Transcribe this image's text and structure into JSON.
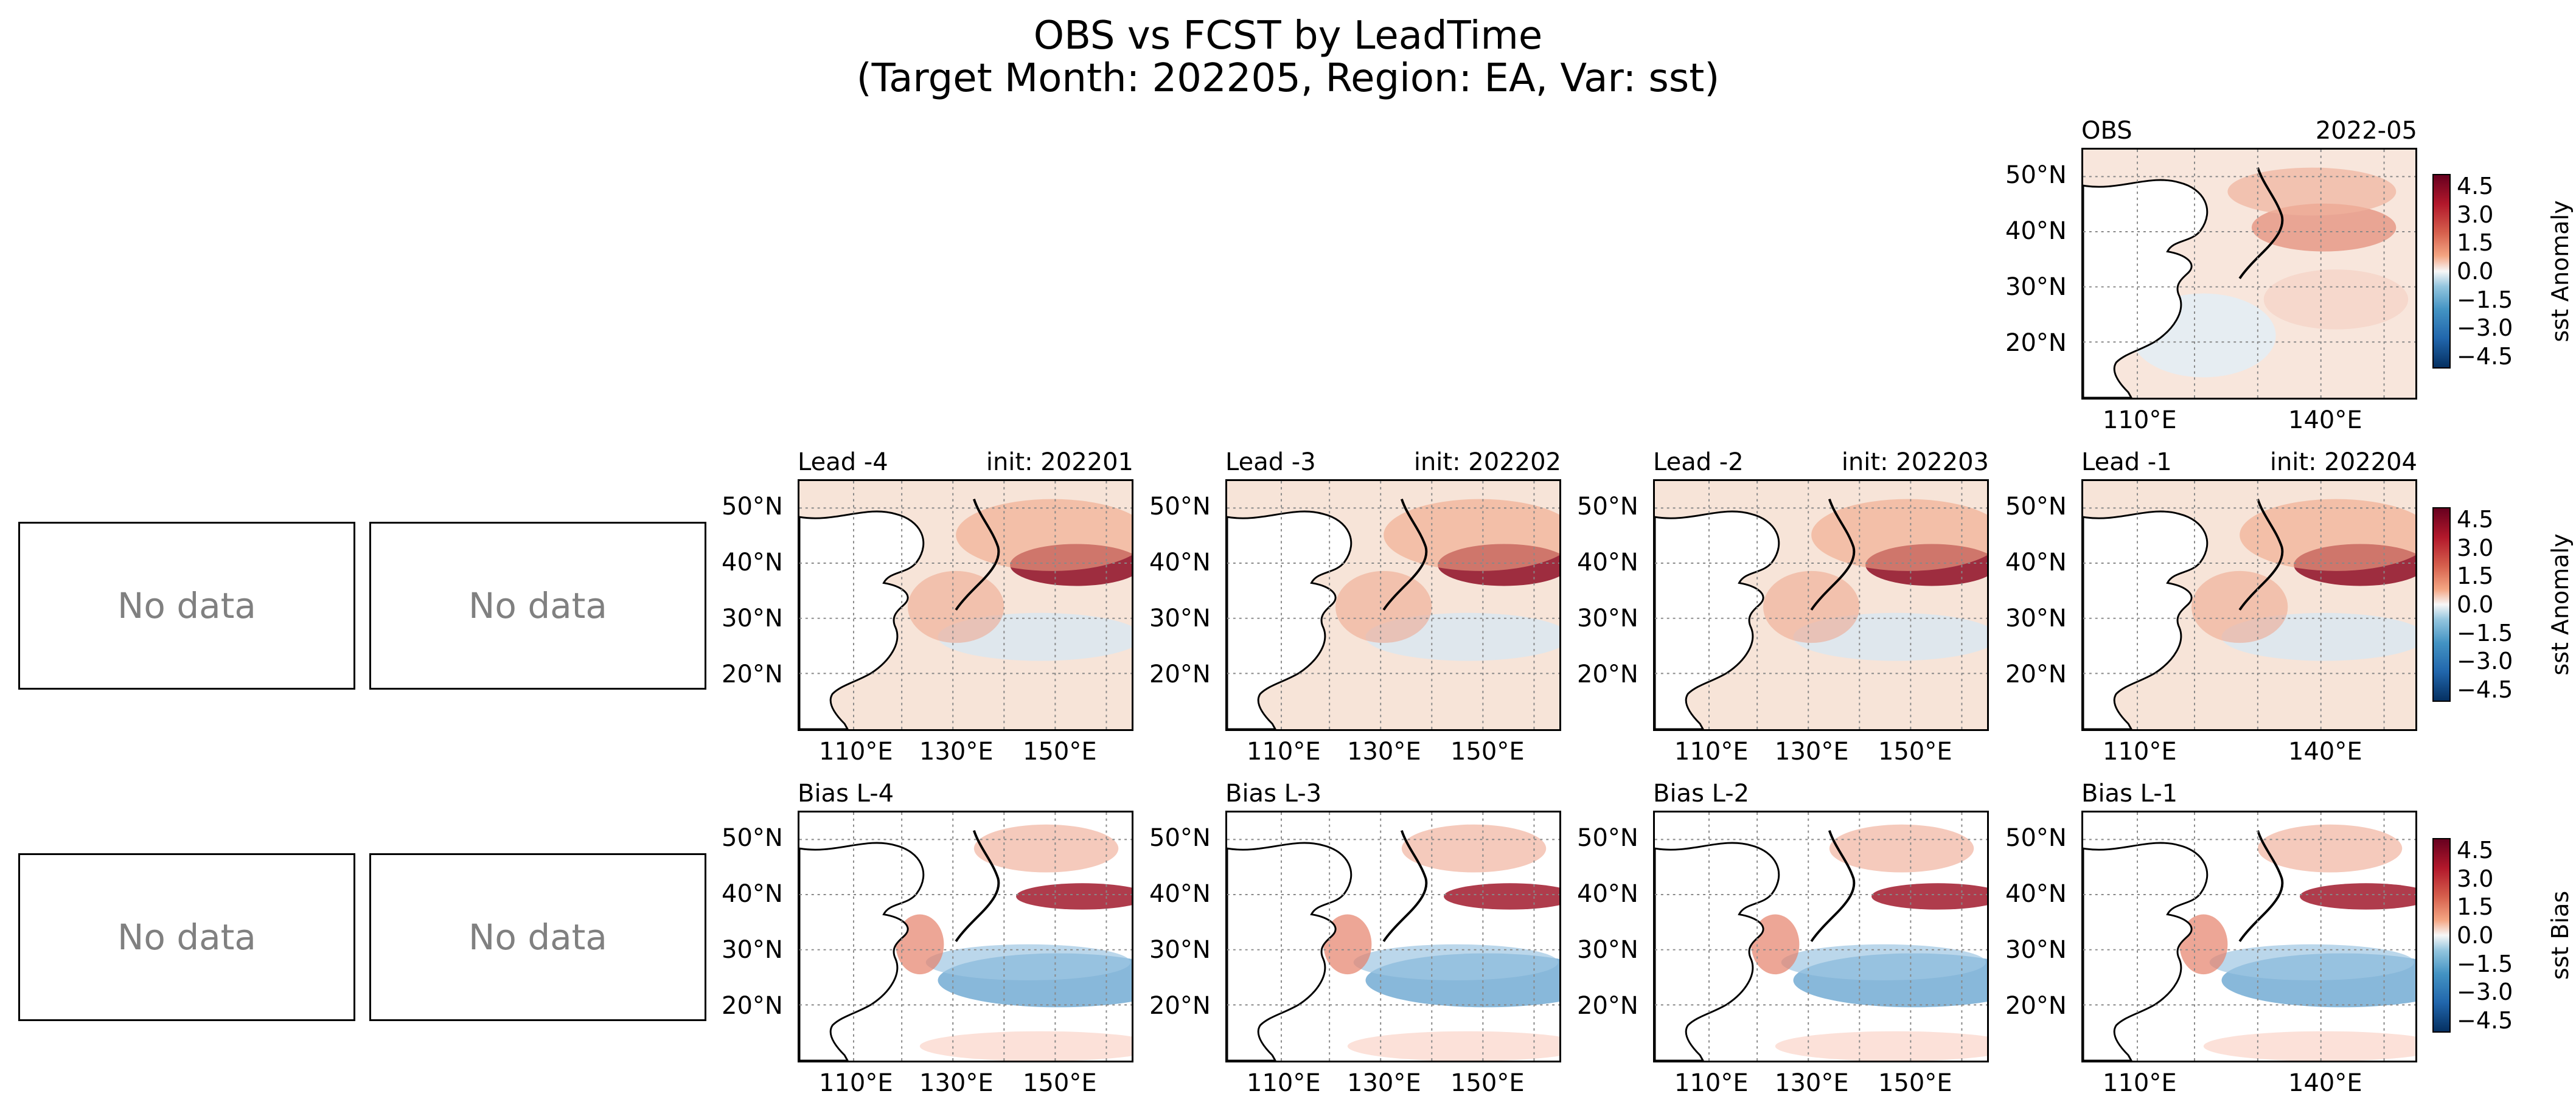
{
  "figure": {
    "title_line1": "OBS vs FCST by LeadTime",
    "title_line2": "(Target Month: 202205, Region: EA, Var: sst)"
  },
  "no_data_text": "No data",
  "lat_labels": [
    "50°N",
    "40°N",
    "30°N",
    "20°N"
  ],
  "lon_labels_wide": [
    "110°E",
    "130°E",
    "150°E"
  ],
  "lon_labels_narrow": [
    "110°E",
    "140°E"
  ],
  "colorbars": [
    {
      "label": "sst Anomaly",
      "ticks": [
        "4.5",
        "3.0",
        "1.5",
        "0.0",
        "−1.5",
        "−3.0",
        "−4.5"
      ]
    },
    {
      "label": "sst Anomaly",
      "ticks": [
        "4.5",
        "3.0",
        "1.5",
        "0.0",
        "−1.5",
        "−3.0",
        "−4.5"
      ]
    },
    {
      "label": "sst Bias",
      "ticks": [
        "4.5",
        "3.0",
        "1.5",
        "0.0",
        "−1.5",
        "−3.0",
        "−4.5"
      ]
    }
  ],
  "colors": {
    "positive": "#b2182b",
    "negative": "#2166ac",
    "neutral": "#f7f7f7",
    "land": "#ffffff"
  },
  "chart_data": {
    "type": "heatmap",
    "panels": [
      {
        "left": "OBS",
        "right": "2022-05"
      },
      {
        "left": "Lead -4",
        "right": "init: 202201"
      },
      {
        "left": "Lead -3",
        "right": "init: 202202"
      },
      {
        "left": "Lead -2",
        "right": "init: 202203"
      },
      {
        "left": "Lead -1",
        "right": "init: 202204"
      },
      {
        "left": "Bias L-4",
        "right": ""
      },
      {
        "left": "Bias L-3",
        "right": ""
      },
      {
        "left": "Bias L-2",
        "right": ""
      },
      {
        "left": "Bias L-1",
        "right": ""
      }
    ],
    "colorbar_range": [
      -4.5,
      4.5
    ],
    "colorbar_extend": "both",
    "grid": true
  }
}
